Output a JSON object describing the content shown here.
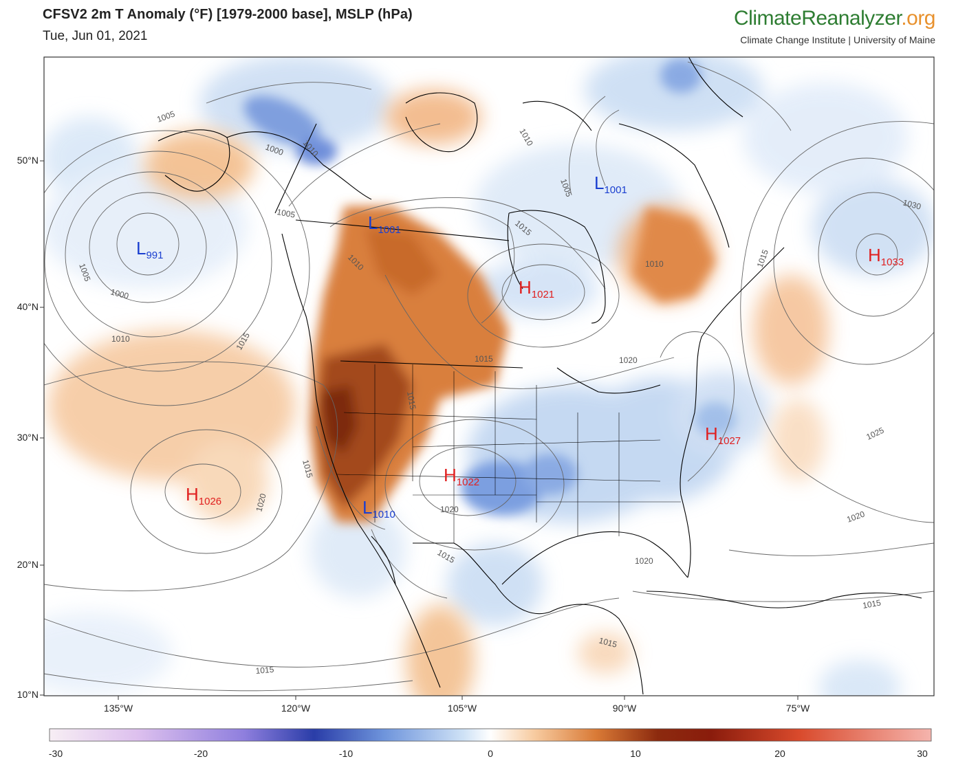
{
  "header": {
    "title": "CFSV2 2m T Anomaly (°F) [1979-2000 base], MSLP (hPa)",
    "date": "Tue, Jun 01, 2021",
    "brand_main": "ClimateReanalyzer",
    "brand_ext": ".org",
    "brand_sub": "Climate Change Institute | University of Maine"
  },
  "axes": {
    "lat_ticks": [
      "50°N",
      "40°N",
      "30°N",
      "20°N",
      "10°N"
    ],
    "lon_ticks": [
      "135°W",
      "120°W",
      "105°W",
      "90°W",
      "75°W"
    ]
  },
  "pressure_centers": [
    {
      "type": "L",
      "value": "991",
      "color": "#1a3fd0"
    },
    {
      "type": "L",
      "value": "1001",
      "color": "#1a3fd0"
    },
    {
      "type": "L",
      "value": "1001",
      "color": "#1a3fd0"
    },
    {
      "type": "L",
      "value": "1010",
      "color": "#1a3fd0"
    },
    {
      "type": "H",
      "value": "1021",
      "color": "#e02020"
    },
    {
      "type": "H",
      "value": "1033",
      "color": "#e02020"
    },
    {
      "type": "H",
      "value": "1027",
      "color": "#e02020"
    },
    {
      "type": "H",
      "value": "1022",
      "color": "#e02020"
    },
    {
      "type": "H",
      "value": "1026",
      "color": "#e02020"
    }
  ],
  "isobar_labels": [
    "1005",
    "1000",
    "1005",
    "1000",
    "1010",
    "1005",
    "1005",
    "1010",
    "1015",
    "1010",
    "1015",
    "1015",
    "1020",
    "1015",
    "1010",
    "1015",
    "1030",
    "1010",
    "1020",
    "1015",
    "1020",
    "1020",
    "1025",
    "1020",
    "1015",
    "1015",
    "1015",
    "1015"
  ],
  "colorbar": {
    "ticks": [
      "-30",
      "-20",
      "-10",
      "0",
      "10",
      "20",
      "30"
    ],
    "colors": [
      "#f7eef4",
      "#e8c9ef",
      "#c9a5ec",
      "#9d84e0",
      "#6f6fd8",
      "#3c4fc4",
      "#1a2f9a",
      "#3b63c8",
      "#6f95dc",
      "#a9c6ee",
      "#dbe9f8",
      "#ffffff",
      "#fbe3cc",
      "#f4be8e",
      "#e6934f",
      "#c8641f",
      "#9e3a12",
      "#7a1a0a",
      "#a81f10",
      "#cc3a1e",
      "#e25a3a",
      "#ef8575",
      "#f7b8b0"
    ]
  }
}
